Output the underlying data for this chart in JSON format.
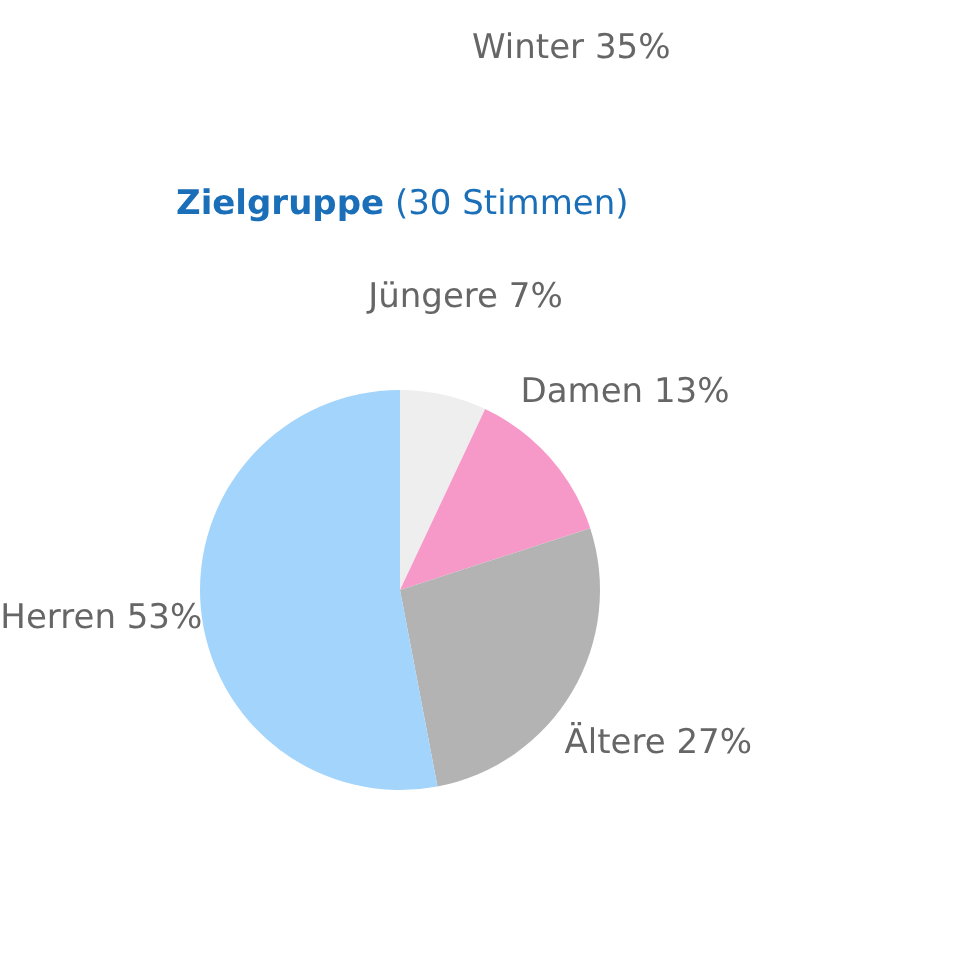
{
  "chart_data": {
    "type": "pie",
    "title": "Zielgruppe",
    "subtitle": "(30 Stimmen)",
    "annotations": [
      "Winter 35%"
    ],
    "categories": [
      "Jüngere",
      "Damen",
      "Ältere",
      "Herren"
    ],
    "values": [
      7,
      13,
      27,
      53
    ],
    "value_labels": [
      "7%",
      "13%",
      "27%",
      "53%"
    ],
    "colors": [
      "#eeeeee",
      "#f799c8",
      "#b3b3b3",
      "#a3d4fb"
    ]
  }
}
